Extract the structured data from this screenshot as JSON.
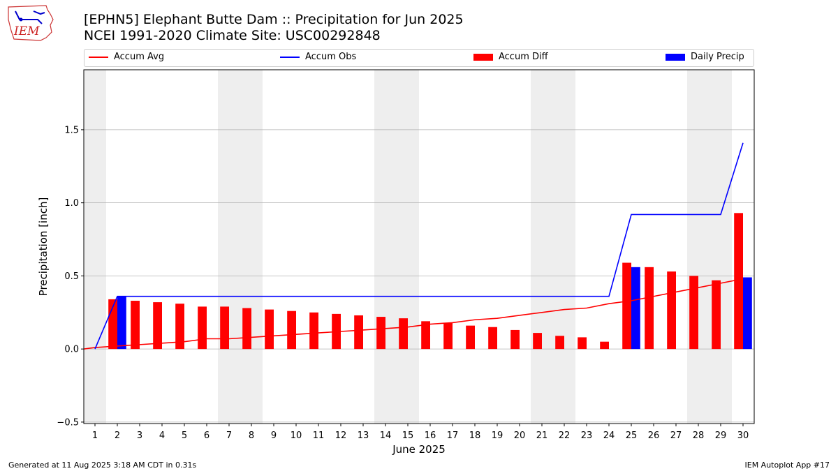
{
  "header": {
    "title_line1": "[EPHN5] Elephant Butte Dam :: Precipitation for Jun 2025",
    "title_line2": "NCEI 1991-2020 Climate Site: USC00292848"
  },
  "logo": {
    "text": "IEM"
  },
  "footer": {
    "generated": "Generated at 11 Aug 2025 3:18 AM CDT in 0.31s",
    "app": "IEM Autoplot App #17"
  },
  "legend": {
    "accum_avg": "Accum Avg",
    "accum_obs": "Accum Obs",
    "accum_diff": "Accum Diff",
    "daily_precip": "Daily Precip"
  },
  "colors": {
    "accum_avg": "#ff0000",
    "accum_obs": "#0000ff",
    "accum_diff": "#ff0000",
    "daily_precip": "#0000ff",
    "weekend_shade": "#eeeeee",
    "grid": "#b0b0b0"
  },
  "chart_data": {
    "type": "bar",
    "xlabel": "June 2025",
    "ylabel": "Precipitation [inch]",
    "ylim": [
      -0.51,
      1.91
    ],
    "yticks": [
      -0.5,
      0.0,
      0.5,
      1.0,
      1.5
    ],
    "ytick_labels": [
      "−0.5",
      "0.0",
      "0.5",
      "1.0",
      "1.5"
    ],
    "days": [
      1,
      2,
      3,
      4,
      5,
      6,
      7,
      8,
      9,
      10,
      11,
      12,
      13,
      14,
      15,
      16,
      17,
      18,
      19,
      20,
      21,
      22,
      23,
      24,
      25,
      26,
      27,
      28,
      29,
      30
    ],
    "weekend_days": [
      1,
      7,
      8,
      14,
      15,
      21,
      22,
      28,
      29
    ],
    "grid": "horizontal",
    "legend_placement": "top",
    "series": [
      {
        "name": "Accum Avg",
        "kind": "line",
        "values": [
          0.01,
          0.02,
          0.03,
          0.04,
          0.05,
          0.07,
          0.07,
          0.08,
          0.09,
          0.1,
          0.11,
          0.12,
          0.13,
          0.14,
          0.15,
          0.17,
          0.18,
          0.2,
          0.21,
          0.23,
          0.25,
          0.27,
          0.28,
          0.31,
          0.33,
          0.36,
          0.39,
          0.42,
          0.45,
          0.48
        ]
      },
      {
        "name": "Accum Obs",
        "kind": "line",
        "values": [
          0.0,
          0.36,
          0.36,
          0.36,
          0.36,
          0.36,
          0.36,
          0.36,
          0.36,
          0.36,
          0.36,
          0.36,
          0.36,
          0.36,
          0.36,
          0.36,
          0.36,
          0.36,
          0.36,
          0.36,
          0.36,
          0.36,
          0.36,
          0.36,
          0.92,
          0.92,
          0.92,
          0.92,
          0.92,
          1.41
        ]
      },
      {
        "name": "Accum Diff",
        "kind": "bar",
        "values": [
          0.0,
          0.34,
          0.33,
          0.32,
          0.31,
          0.29,
          0.29,
          0.28,
          0.27,
          0.26,
          0.25,
          0.24,
          0.23,
          0.22,
          0.21,
          0.19,
          0.18,
          0.16,
          0.15,
          0.13,
          0.11,
          0.09,
          0.08,
          0.05,
          0.59,
          0.56,
          0.53,
          0.5,
          0.47,
          0.93
        ]
      },
      {
        "name": "Daily Precip",
        "kind": "bar",
        "values": [
          0.0,
          0.36,
          0.0,
          0.0,
          0.0,
          0.0,
          0.0,
          0.0,
          0.0,
          0.0,
          0.0,
          0.0,
          0.0,
          0.0,
          0.0,
          0.0,
          0.0,
          0.0,
          0.0,
          0.0,
          0.0,
          0.0,
          0.0,
          0.0,
          0.56,
          0.0,
          0.0,
          0.0,
          0.0,
          0.49
        ]
      }
    ]
  }
}
